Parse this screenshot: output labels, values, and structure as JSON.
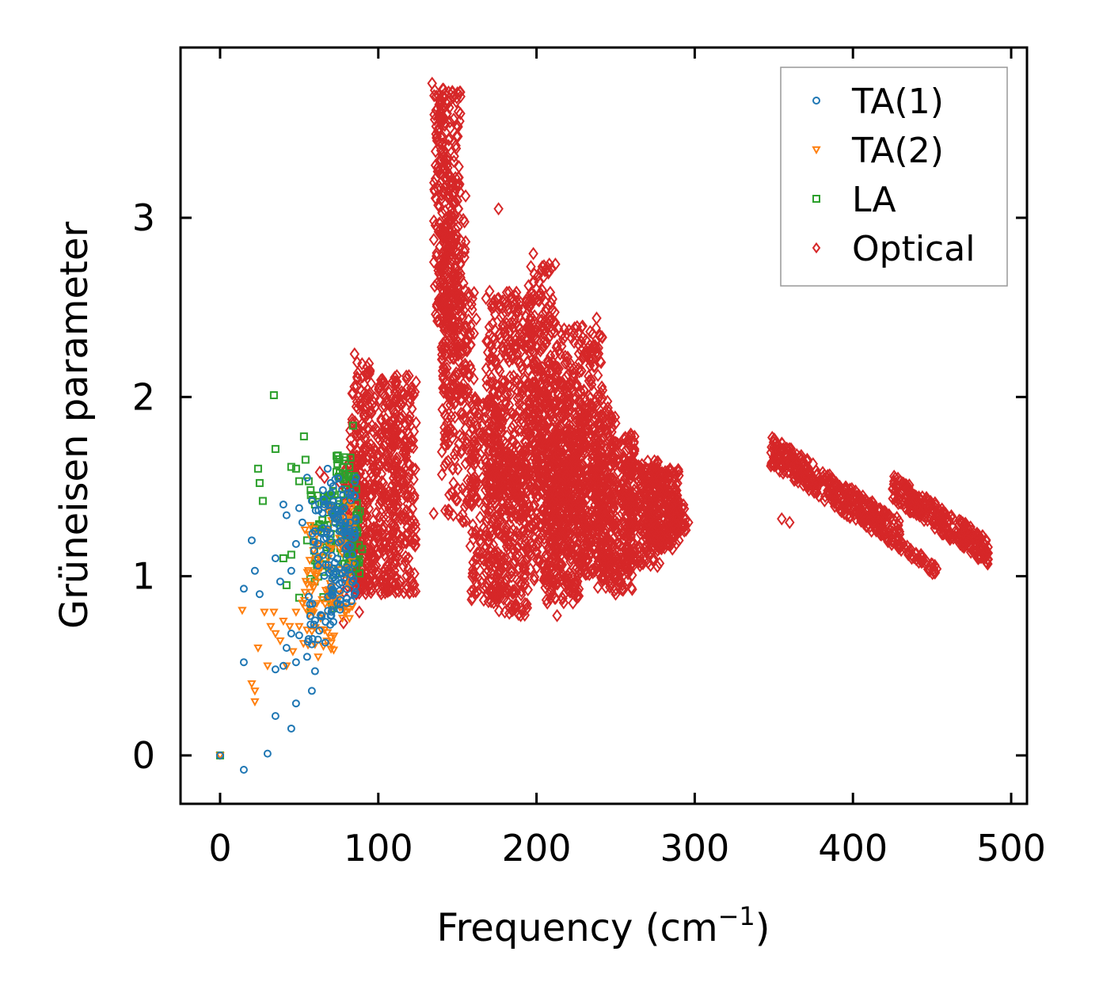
{
  "chart_data": {
    "type": "scatter",
    "title": "",
    "xlabel": "Frequency (cm",
    "xlabel_sup": "−1",
    "xlabel_suffix": ")",
    "ylabel": "Grüneisen parameter",
    "xlim": [
      -25,
      510
    ],
    "ylim": [
      -0.27,
      3.95
    ],
    "x_ticks": [
      0,
      100,
      200,
      300,
      400,
      500
    ],
    "x_tick_labels": [
      "0",
      "100",
      "200",
      "300",
      "400",
      "500"
    ],
    "y_ticks": [
      0,
      1,
      2,
      3
    ],
    "y_tick_labels": [
      "0",
      "1",
      "2",
      "3"
    ],
    "legend_position": "top-right",
    "series": [
      {
        "name": "TA(1)",
        "marker": "circle",
        "color": "#1f77b4",
        "points": [
          [
            0,
            0
          ],
          [
            15,
            -0.08
          ],
          [
            30,
            0.01
          ],
          [
            35,
            0.22
          ],
          [
            45,
            0.15
          ],
          [
            48,
            0.29
          ],
          [
            58,
            0.36
          ],
          [
            15,
            0.52
          ],
          [
            20,
            1.2
          ],
          [
            22,
            1.03
          ],
          [
            25,
            0.9
          ],
          [
            15,
            0.93
          ],
          [
            35,
            0.48
          ],
          [
            40,
            0.5
          ],
          [
            42,
            0.6
          ],
          [
            45,
            0.68
          ],
          [
            48,
            0.52
          ],
          [
            50,
            0.67
          ],
          [
            55,
            0.55
          ],
          [
            58,
            0.62
          ],
          [
            60,
            0.47
          ],
          [
            35,
            1.1
          ],
          [
            38,
            0.97
          ],
          [
            40,
            1.4
          ],
          [
            42,
            1.34
          ],
          [
            45,
            1.03
          ],
          [
            48,
            1.18
          ],
          [
            50,
            1.38
          ],
          [
            52,
            1.3
          ],
          [
            55,
            1.55
          ],
          [
            58,
            1.42
          ],
          [
            60,
            1.25
          ],
          [
            62,
            1.1
          ],
          [
            65,
            1.48
          ],
          [
            68,
            1.6
          ],
          [
            70,
            1.52
          ],
          [
            72,
            1.35
          ],
          [
            75,
            1.42
          ],
          [
            78,
            1.38
          ],
          [
            80,
            1.25
          ],
          [
            82,
            1.3
          ],
          [
            85,
            1.45
          ],
          [
            86,
            1.55
          ]
        ],
        "bands": [
          {
            "x_range": [
              55,
              72
            ],
            "y_range": [
              0.6,
              1.45
            ],
            "count": 60
          },
          {
            "x_range": [
              70,
              86
            ],
            "y_range": [
              0.8,
              1.55
            ],
            "count": 90
          }
        ]
      },
      {
        "name": "TA(2)",
        "marker": "triangle-down",
        "color": "#ff7f0e",
        "points": [
          [
            0,
            0
          ],
          [
            14,
            0.81
          ],
          [
            20,
            0.4
          ],
          [
            22,
            0.36
          ],
          [
            22,
            0.3
          ],
          [
            24,
            0.6
          ],
          [
            28,
            0.8
          ],
          [
            30,
            0.5
          ],
          [
            32,
            0.72
          ],
          [
            34,
            0.8
          ],
          [
            35,
            0.68
          ],
          [
            38,
            0.64
          ],
          [
            40,
            0.75
          ],
          [
            42,
            0.5
          ],
          [
            44,
            0.72
          ],
          [
            46,
            0.58
          ],
          [
            48,
            0.8
          ],
          [
            50,
            0.72
          ],
          [
            52,
            0.85
          ],
          [
            55,
            0.7
          ],
          [
            58,
            0.95
          ],
          [
            60,
            0.62
          ],
          [
            62,
            0.55
          ],
          [
            65,
            0.78
          ],
          [
            66,
            0.7
          ],
          [
            68,
            0.9
          ]
        ],
        "bands": [
          {
            "x_range": [
              52,
              72
            ],
            "y_range": [
              0.55,
              1.3
            ],
            "count": 55
          },
          {
            "x_range": [
              68,
              84
            ],
            "y_range": [
              0.75,
              1.45
            ],
            "count": 60
          }
        ]
      },
      {
        "name": "LA",
        "marker": "square",
        "color": "#2ca02c",
        "points": [
          [
            0,
            0
          ],
          [
            34,
            2.01
          ],
          [
            35,
            1.71
          ],
          [
            24,
            1.6
          ],
          [
            25,
            1.52
          ],
          [
            27,
            1.42
          ],
          [
            45,
            1.61
          ],
          [
            48,
            1.6
          ],
          [
            50,
            1.53
          ],
          [
            53,
            1.78
          ],
          [
            54,
            1.65
          ],
          [
            56,
            1.53
          ],
          [
            60,
            1.4
          ],
          [
            62,
            1.45
          ],
          [
            84,
            1.84
          ],
          [
            45,
            1.12
          ],
          [
            40,
            1.1
          ],
          [
            42,
            0.95
          ],
          [
            50,
            0.88
          ],
          [
            55,
            1.2
          ]
        ],
        "bands": [
          {
            "x_range": [
              56,
              72
            ],
            "y_range": [
              0.8,
              1.5
            ],
            "count": 50
          },
          {
            "x_range": [
              72,
              90
            ],
            "y_range": [
              1.0,
              1.68
            ],
            "count": 80
          }
        ]
      },
      {
        "name": "Optical",
        "marker": "diamond",
        "color": "#d62728",
        "points": [
          [
            63,
            1.58
          ],
          [
            66,
            1.55
          ],
          [
            76,
            1.52
          ],
          [
            78,
            0.74
          ],
          [
            88,
            0.8
          ],
          [
            85,
            2.24
          ],
          [
            134,
            3.75
          ],
          [
            135,
            1.35
          ],
          [
            176,
            3.05
          ],
          [
            176,
            2.55
          ],
          [
            180,
            0.8
          ],
          [
            190,
            0.78
          ],
          [
            198,
            2.8
          ],
          [
            213,
            0.78
          ],
          [
            220,
            1.0
          ],
          [
            238,
            2.44
          ],
          [
            250,
            0.9
          ],
          [
            262,
            1.78
          ],
          [
            276,
            1.62
          ],
          [
            292,
            1.38
          ],
          [
            296,
            1.3
          ],
          [
            350,
            1.72
          ],
          [
            355,
            1.32
          ],
          [
            360,
            1.3
          ],
          [
            430,
            1.53
          ],
          [
            452,
            1.02
          ],
          [
            484,
            1.15
          ]
        ],
        "bands": [
          {
            "x_range": [
              78,
              92
            ],
            "y_range": [
              0.9,
              1.7
            ],
            "count": 110
          },
          {
            "x_range": [
              82,
              98
            ],
            "y_range": [
              0.9,
              2.2
            ],
            "count": 220
          },
          {
            "x_range": [
              98,
              112
            ],
            "y_range": [
              0.9,
              2.1
            ],
            "count": 200
          },
          {
            "x_range": [
              108,
              124
            ],
            "y_range": [
              0.9,
              2.12
            ],
            "count": 200
          },
          {
            "x_range": [
              135,
              152
            ],
            "y_range": [
              2.4,
              3.72
            ],
            "count": 280
          },
          {
            "x_range": [
              140,
              162
            ],
            "y_range": [
              1.3,
              2.6
            ],
            "count": 220
          },
          {
            "x_range": [
              140,
              156
            ],
            "y_range": [
              2.0,
              3.2
            ],
            "count": 120
          },
          {
            "x_range": [
              158,
              178
            ],
            "y_range": [
              0.85,
              2.0
            ],
            "count": 240
          },
          {
            "x_range": [
              168,
              196
            ],
            "y_range": [
              1.4,
              2.6
            ],
            "count": 320
          },
          {
            "x_range": [
              175,
              195
            ],
            "y_range": [
              0.78,
              1.7
            ],
            "count": 240
          },
          {
            "x_range": [
              194,
              212
            ],
            "y_range": [
              0.95,
              2.75
            ],
            "count": 300
          },
          {
            "x_range": [
              198,
              222
            ],
            "y_range": [
              1.2,
              2.2
            ],
            "count": 220
          },
          {
            "x_range": [
              205,
              228
            ],
            "y_range": [
              0.85,
              1.8
            ],
            "count": 260
          },
          {
            "x_range": [
              212,
              242
            ],
            "y_range": [
              1.1,
              2.4
            ],
            "count": 360
          },
          {
            "x_range": [
              226,
              250
            ],
            "y_range": [
              1.0,
              2.0
            ],
            "count": 280
          },
          {
            "x_range": [
              238,
              262
            ],
            "y_range": [
              0.92,
              1.8
            ],
            "count": 280
          },
          {
            "x_range": [
              255,
              278
            ],
            "y_range": [
              1.05,
              1.65
            ],
            "count": 240
          },
          {
            "x_range": [
              270,
              290
            ],
            "y_range": [
              1.15,
              1.6
            ],
            "count": 200
          },
          {
            "x_range": [
              282,
              296
            ],
            "y_range": [
              1.25,
              1.4
            ],
            "count": 50
          }
        ],
        "lines": [
          {
            "x_range": [
              348,
              430
            ],
            "y_range": [
              1.7,
              1.23
            ],
            "width": 0.17,
            "count": 380
          },
          {
            "x_range": [
              425,
              486
            ],
            "y_range": [
              1.5,
              1.13
            ],
            "width": 0.15,
            "count": 280
          },
          {
            "x_range": [
              420,
              454
            ],
            "y_range": [
              1.24,
              1.02
            ],
            "width": 0.06,
            "count": 50
          }
        ]
      }
    ]
  }
}
